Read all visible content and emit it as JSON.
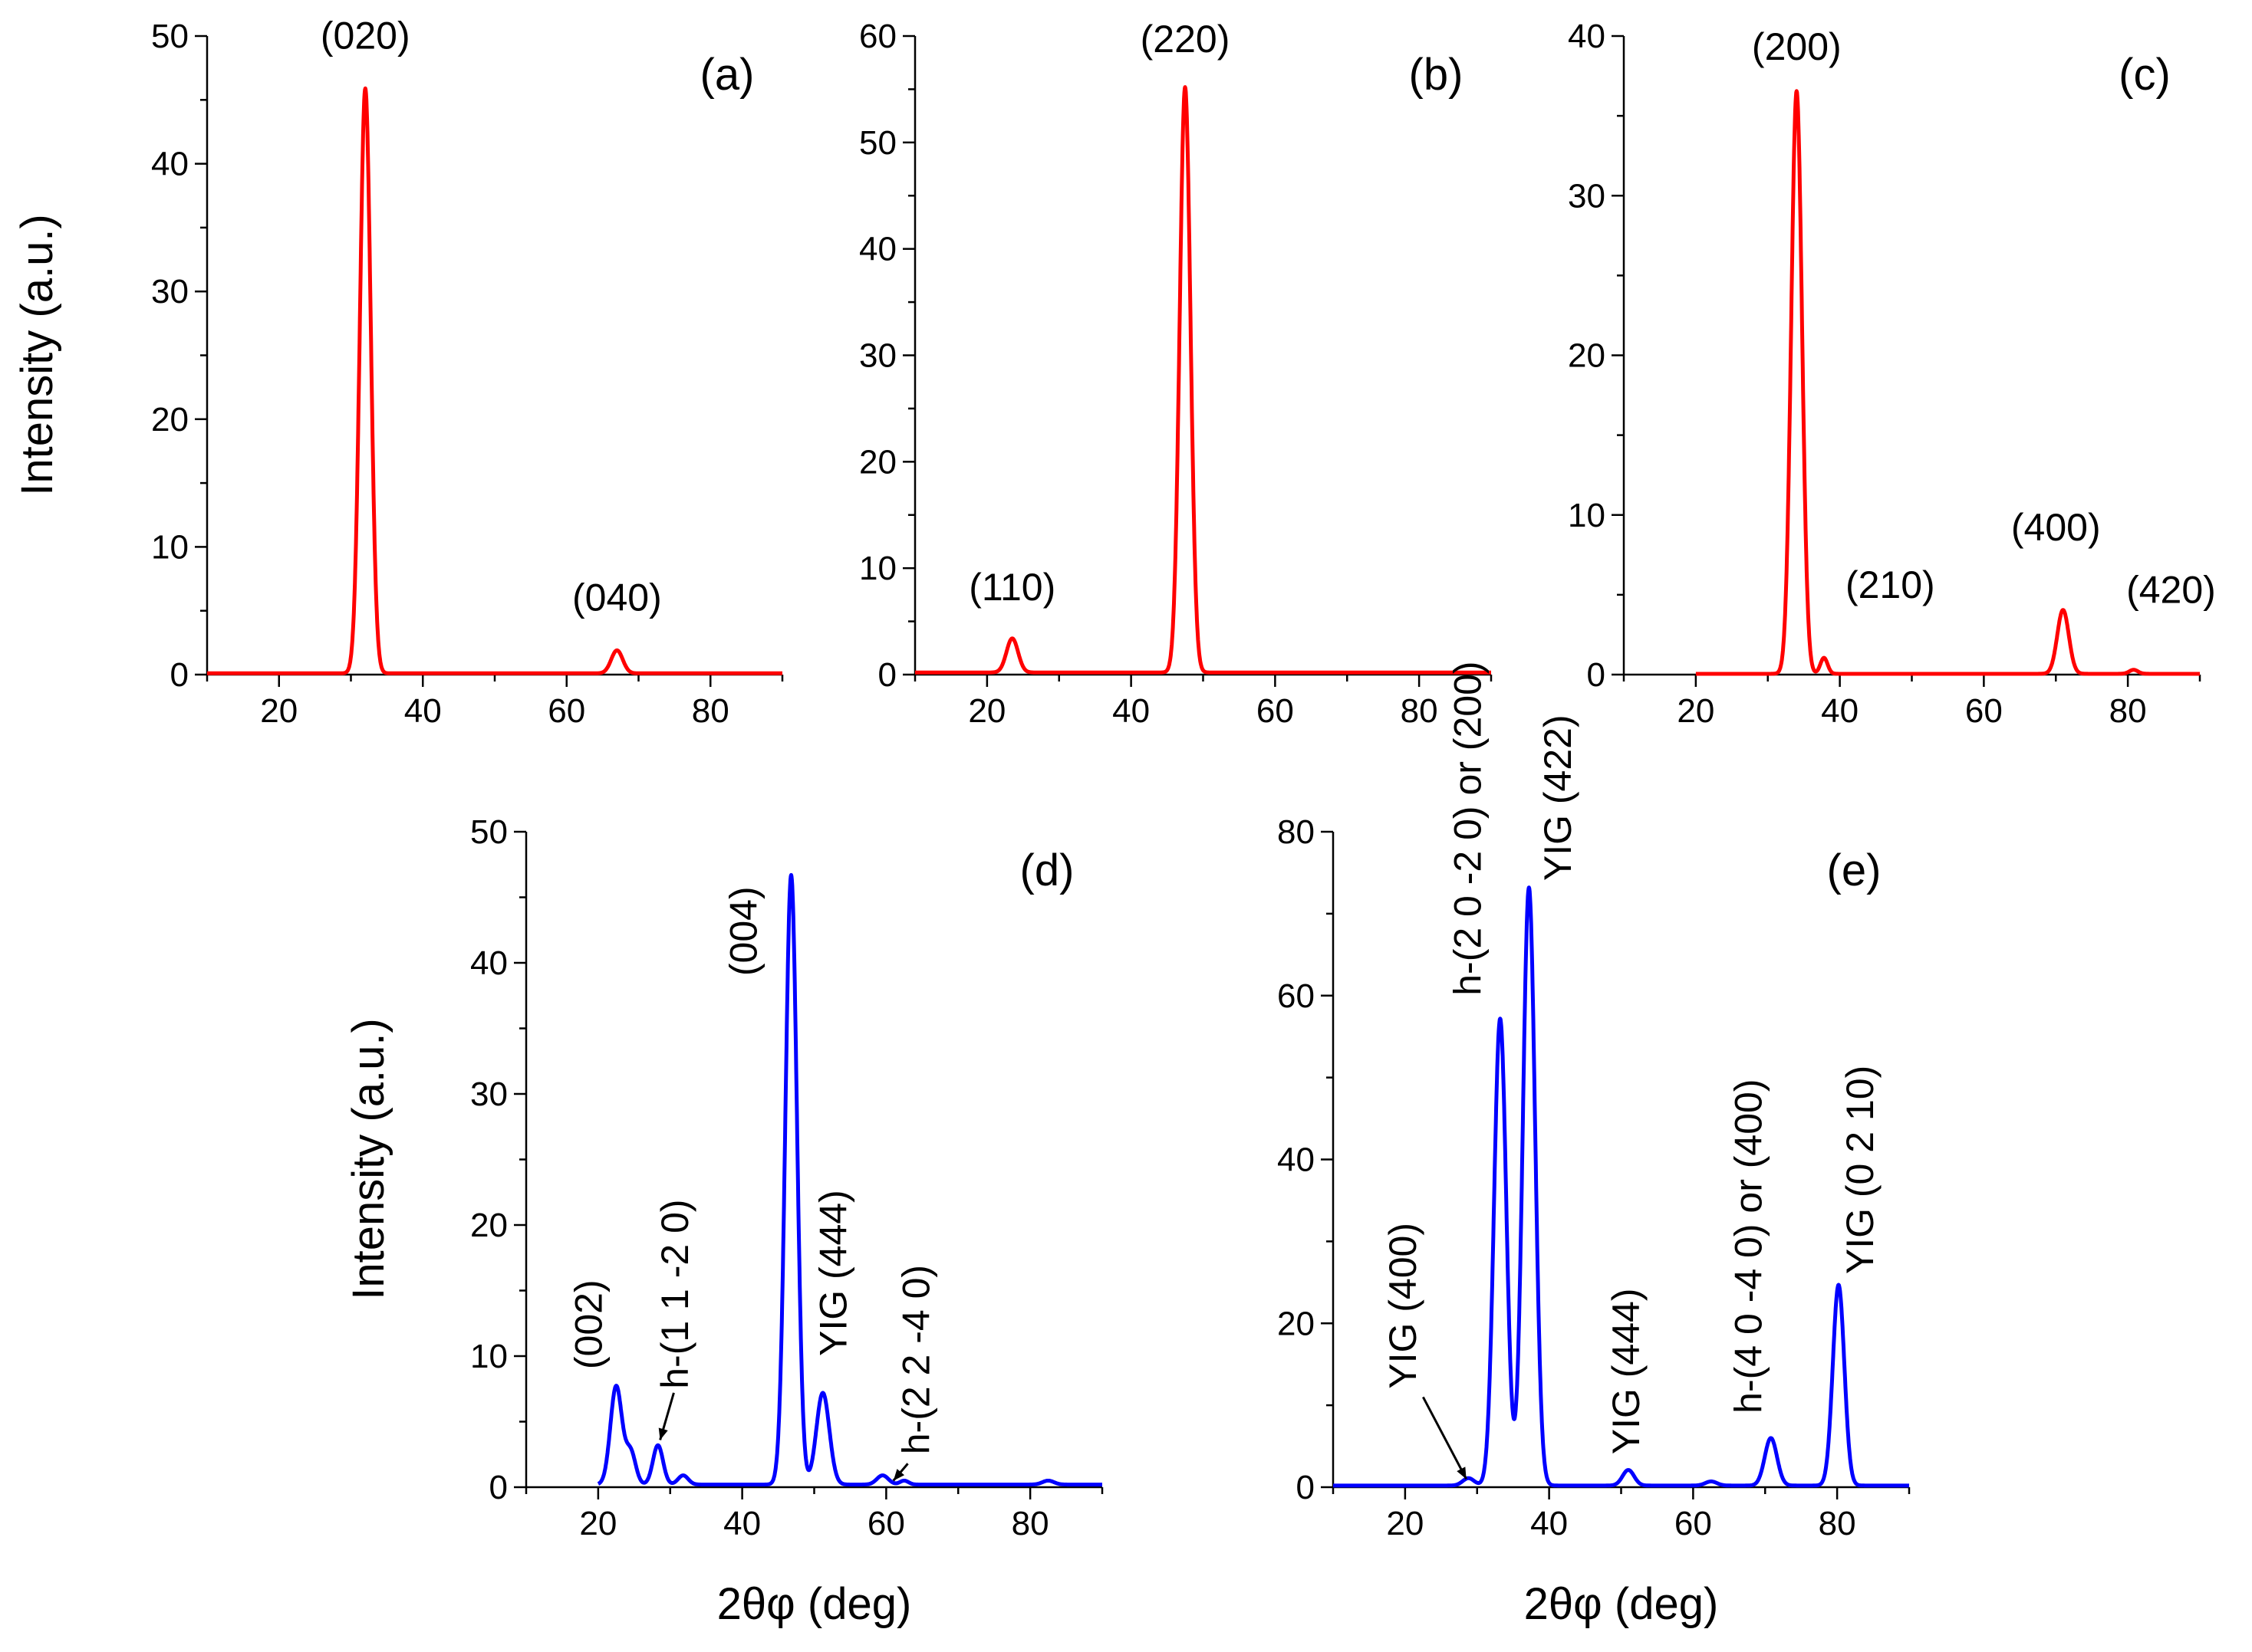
{
  "colors": {
    "red_series": "#ff0000",
    "blue_series": "#0000ff",
    "axis": "#000000"
  },
  "chart_data": [
    {
      "id": "a",
      "type": "line",
      "panel_label": "(a)",
      "xlim": [
        10,
        90
      ],
      "ylim": [
        0,
        50
      ],
      "xticks": [
        20,
        40,
        60,
        80
      ],
      "yticks": [
        0,
        10,
        20,
        30,
        40,
        50
      ],
      "ylabel": "Intensity (a.u.)",
      "xlabel": "",
      "color": "#ff0000",
      "baseline": 0.1,
      "start": 10,
      "end": 90,
      "peaks": [
        {
          "center": 32,
          "height": 45.8,
          "width": 0.75
        },
        {
          "center": 67,
          "height": 1.8,
          "width": 0.8
        }
      ],
      "labels": [
        {
          "text": "(020)",
          "x": 32,
          "y": 49
        },
        {
          "text": "(040)",
          "x": 67,
          "y": 5
        }
      ]
    },
    {
      "id": "b",
      "type": "line",
      "panel_label": "(b)",
      "xlim": [
        10,
        90
      ],
      "ylim": [
        0,
        60
      ],
      "xticks": [
        20,
        40,
        60,
        80
      ],
      "yticks": [
        0,
        10,
        20,
        30,
        40,
        50,
        60
      ],
      "ylabel": "",
      "xlabel": "",
      "color": "#ff0000",
      "baseline": 0.2,
      "start": 10,
      "end": 90,
      "peaks": [
        {
          "center": 23.5,
          "height": 3.2,
          "width": 0.8
        },
        {
          "center": 47.5,
          "height": 55,
          "width": 0.75
        }
      ],
      "labels": [
        {
          "text": "(110)",
          "x": 23.5,
          "y": 7
        },
        {
          "text": "(220)",
          "x": 47.5,
          "y": 58.5
        }
      ]
    },
    {
      "id": "c",
      "type": "line",
      "panel_label": "(c)",
      "xlim": [
        10,
        90
      ],
      "ylim": [
        0,
        40
      ],
      "xticks": [
        20,
        40,
        60,
        80
      ],
      "yticks": [
        0,
        10,
        20,
        30,
        40
      ],
      "ylabel": "",
      "xlabel": "",
      "color": "#ff0000",
      "baseline": 0.05,
      "start": 20,
      "end": 90,
      "peaks": [
        {
          "center": 34,
          "height": 36.5,
          "width": 0.75
        },
        {
          "center": 37.8,
          "height": 1.0,
          "width": 0.5
        },
        {
          "center": 71,
          "height": 4.0,
          "width": 0.8
        },
        {
          "center": 80.8,
          "height": 0.25,
          "width": 0.6
        }
      ],
      "labels": [
        {
          "text": "(200)",
          "x": 34,
          "y": 38.5
        },
        {
          "text": "(210)",
          "x": 47,
          "y": 4.8
        },
        {
          "text": "(400)",
          "x": 70,
          "y": 8.4
        },
        {
          "text": "(420)",
          "x": 86,
          "y": 4.5
        }
      ]
    },
    {
      "id": "d",
      "type": "line",
      "panel_label": "(d)",
      "xlim": [
        10,
        90
      ],
      "ylim": [
        0,
        50
      ],
      "xticks": [
        20,
        40,
        60,
        80
      ],
      "yticks": [
        0,
        10,
        20,
        30,
        40,
        50
      ],
      "ylabel": "Intensity (a.u.)",
      "xlabel": "2θφ (deg)",
      "color": "#0000ff",
      "baseline": 0.2,
      "start": 20,
      "end": 90,
      "peaks": [
        {
          "center": 22.5,
          "height": 7.5,
          "width": 0.8
        },
        {
          "center": 24.5,
          "height": 2.5,
          "width": 0.7
        },
        {
          "center": 28.3,
          "height": 3.0,
          "width": 0.7
        },
        {
          "center": 31.8,
          "height": 0.7,
          "width": 0.7
        },
        {
          "center": 46.8,
          "height": 46.5,
          "width": 0.8
        },
        {
          "center": 51.2,
          "height": 7.0,
          "width": 0.9
        },
        {
          "center": 59.5,
          "height": 0.7,
          "width": 0.8
        },
        {
          "center": 62.5,
          "height": 0.3,
          "width": 0.6
        },
        {
          "center": 82.5,
          "height": 0.3,
          "width": 0.8
        }
      ],
      "labels": [
        {
          "text": "(002)",
          "x": 20.5,
          "y": 9,
          "rotate": true
        },
        {
          "text": "h-(1 1 -2 0)",
          "x": 32.5,
          "y": 7.5,
          "rotate": true
        },
        {
          "text": "(004)",
          "x": 42,
          "y": 39,
          "rotate": true
        },
        {
          "text": "YIG (444)",
          "x": 54.5,
          "y": 10,
          "rotate": true
        },
        {
          "text": "h-(2 2 -4 0)",
          "x": 66,
          "y": 2.5,
          "rotate": true
        }
      ],
      "arrows": [
        {
          "from": [
            30.5,
            7.2
          ],
          "to": [
            28.6,
            3.6
          ]
        },
        {
          "from": [
            63,
            1.8
          ],
          "to": [
            61,
            0.5
          ]
        }
      ]
    },
    {
      "id": "e",
      "type": "line",
      "panel_label": "(e)",
      "xlim": [
        10,
        90
      ],
      "ylim": [
        0,
        80
      ],
      "xticks": [
        20,
        40,
        60,
        80
      ],
      "yticks": [
        0,
        20,
        40,
        60,
        80
      ],
      "ylabel": "",
      "xlabel": "2θφ (deg)",
      "color": "#0000ff",
      "baseline": 0.2,
      "start": 10,
      "end": 90,
      "peaks": [
        {
          "center": 28.8,
          "height": 0.9,
          "width": 0.8
        },
        {
          "center": 33.2,
          "height": 57,
          "width": 0.85
        },
        {
          "center": 37.2,
          "height": 73,
          "width": 0.85
        },
        {
          "center": 51,
          "height": 1.9,
          "width": 0.8
        },
        {
          "center": 62.5,
          "height": 0.5,
          "width": 0.8
        },
        {
          "center": 70.8,
          "height": 5.8,
          "width": 0.85
        },
        {
          "center": 80.2,
          "height": 24.5,
          "width": 0.8
        }
      ],
      "labels": [
        {
          "text": "YIG (400)",
          "x": 21.5,
          "y": 12,
          "rotate": true
        },
        {
          "text": "h-(2 0 -2 0) or (200)",
          "x": 30.5,
          "y": 60,
          "rotate": true
        },
        {
          "text": "YIG (422)",
          "x": 43,
          "y": 74,
          "rotate": true
        },
        {
          "text": "YIG (444)",
          "x": 52.5,
          "y": 4,
          "rotate": true
        },
        {
          "text": "h-(4 0 -4 0) or (400)",
          "x": 69.5,
          "y": 9,
          "rotate": true
        },
        {
          "text": "YIG (0 2 10)",
          "x": 85,
          "y": 26,
          "rotate": true
        }
      ],
      "arrows": [
        {
          "from": [
            22.5,
            11
          ],
          "to": [
            28.5,
            1.0
          ]
        }
      ]
    }
  ]
}
